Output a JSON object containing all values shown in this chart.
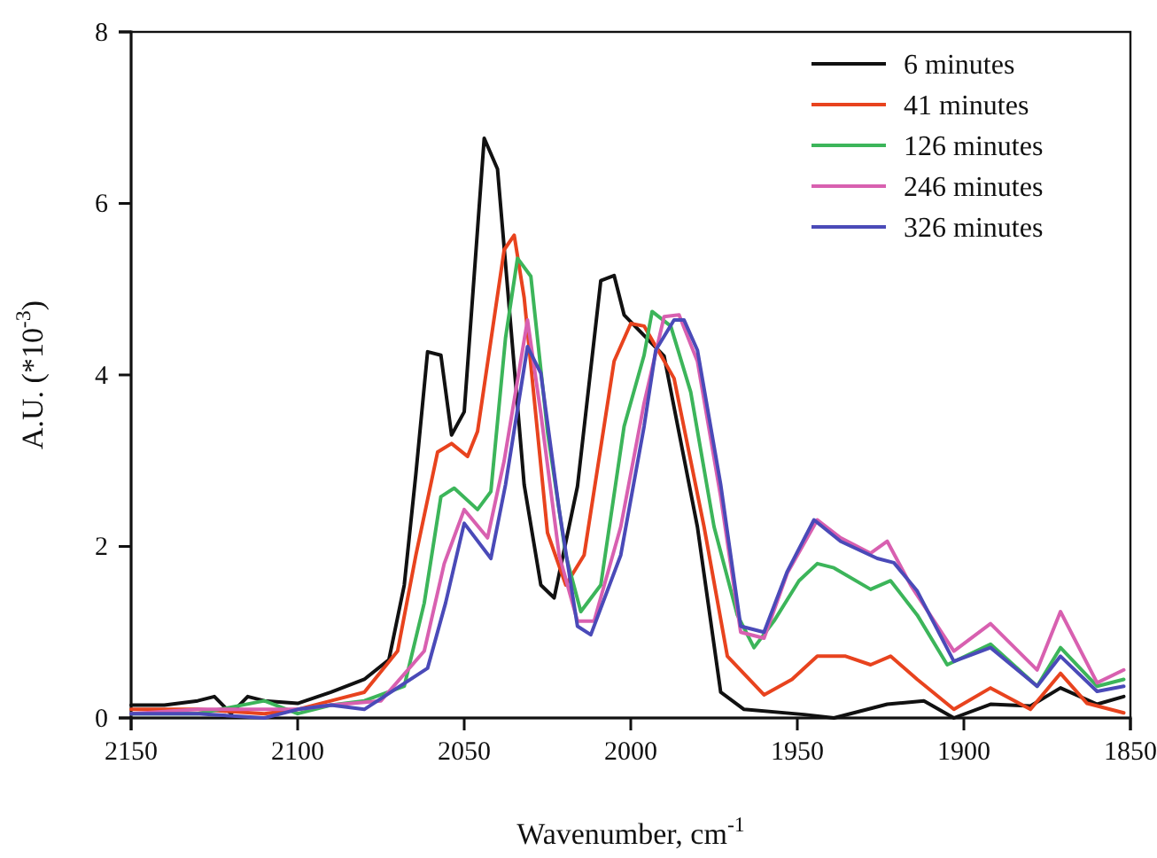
{
  "chart_data": {
    "type": "line",
    "xlabel": "Wavenumber, cm$^{-1}$",
    "ylabel": "A.U. (*10$^{-3}$)",
    "xlim": [
      2150,
      1850
    ],
    "xticks": [
      2150,
      2100,
      2050,
      2000,
      1950,
      1900,
      1850
    ],
    "ylim": [
      0,
      8
    ],
    "yticks": [
      0,
      2,
      4,
      6,
      8
    ],
    "grid": false,
    "legend": "top right",
    "marker": "none",
    "line_style": "solid",
    "series": [
      {
        "name": "6 minutes",
        "color": "#111111",
        "x": [
          2150,
          2140,
          2130,
          2125,
          2120,
          2115,
          2110,
          2100,
          2090,
          2080,
          2072.6,
          2068,
          2064.5,
          2061,
          2057,
          2053.8,
          2050,
          2044,
          2040,
          2032,
          2027,
          2023,
          2016,
          2009,
          2005,
          2002,
          1990,
          1980,
          1973,
          1966,
          1948,
          1939,
          1923,
          1912,
          1903,
          1892,
          1880,
          1871,
          1860,
          1852
        ],
        "values": [
          0.15,
          0.15,
          0.2,
          0.25,
          0.05,
          0.25,
          0.2,
          0.17,
          0.3,
          0.45,
          0.68,
          1.55,
          2.85,
          4.27,
          4.23,
          3.3,
          3.57,
          6.76,
          6.4,
          2.72,
          1.55,
          1.4,
          2.7,
          5.1,
          5.16,
          4.7,
          4.22,
          2.23,
          0.3,
          0.1,
          0.04,
          0,
          0.16,
          0.2,
          0,
          0.16,
          0.14,
          0.35,
          0.16,
          0.25
        ]
      },
      {
        "name": "41 minutes",
        "color": "#e8431e",
        "x": [
          2150,
          2130,
          2110,
          2100,
          2090,
          2080,
          2070,
          2064.5,
          2058,
          2053.8,
          2049,
          2046,
          2038,
          2035,
          2032,
          2025,
          2019.5,
          2014,
          2005,
          2000,
          1996,
          1987,
          1978,
          1971,
          1960,
          1951.6,
          1944,
          1935.5,
          1928,
          1922,
          1914,
          1903,
          1892,
          1880,
          1871,
          1863,
          1852
        ],
        "values": [
          0.1,
          0.1,
          0.05,
          0.1,
          0.2,
          0.3,
          0.78,
          1.9,
          3.1,
          3.2,
          3.05,
          3.34,
          5.46,
          5.63,
          4.9,
          2.16,
          1.55,
          1.9,
          4.16,
          4.6,
          4.57,
          3.96,
          2.23,
          0.72,
          0.27,
          0.45,
          0.72,
          0.72,
          0.62,
          0.72,
          0.45,
          0.1,
          0.35,
          0.1,
          0.52,
          0.17,
          0.06
        ]
      },
      {
        "name": "126 minutes",
        "color": "#3cb55a",
        "x": [
          2150,
          2130,
          2110,
          2100,
          2090,
          2080,
          2068,
          2062,
          2057,
          2053,
          2046,
          2042,
          2037.6,
          2034,
          2030,
          2025,
          2019.5,
          2015,
          2009,
          2002,
          1996,
          1993.6,
          1988,
          1982,
          1975,
          1968,
          1963,
          1957,
          1949.5,
          1944,
          1939,
          1928,
          1922,
          1914,
          1905,
          1892,
          1878,
          1871,
          1860,
          1852
        ],
        "values": [
          0.05,
          0.05,
          0.2,
          0.05,
          0.15,
          0.2,
          0.37,
          1.34,
          2.58,
          2.68,
          2.43,
          2.64,
          4.43,
          5.36,
          5.15,
          3.34,
          1.9,
          1.24,
          1.55,
          3.4,
          4.23,
          4.74,
          4.57,
          3.8,
          2.23,
          1.2,
          0.82,
          1.13,
          1.6,
          1.8,
          1.75,
          1.5,
          1.6,
          1.2,
          0.62,
          0.86,
          0.37,
          0.82,
          0.37,
          0.45
        ]
      },
      {
        "name": "246 minutes",
        "color": "#d860b0",
        "x": [
          2150,
          2130,
          2110,
          2100,
          2090,
          2075,
          2062,
          2056,
          2050,
          2043,
          2038,
          2031,
          2027,
          2021.5,
          2016,
          2011,
          2003,
          1996,
          1990,
          1985.5,
          1980,
          1973,
          1967,
          1960,
          1953,
          1944,
          1937,
          1928,
          1923,
          1916,
          1903,
          1892,
          1878,
          1871,
          1860,
          1852
        ],
        "values": [
          0.05,
          0.1,
          0.1,
          0.1,
          0.15,
          0.2,
          0.78,
          1.8,
          2.43,
          2.1,
          3.0,
          4.64,
          3.55,
          1.9,
          1.13,
          1.13,
          2.23,
          3.67,
          4.68,
          4.7,
          4.16,
          2.58,
          1.0,
          0.93,
          1.69,
          2.31,
          2.1,
          1.92,
          2.06,
          1.55,
          0.78,
          1.1,
          0.56,
          1.24,
          0.41,
          0.56
        ]
      },
      {
        "name": "326 minutes",
        "color": "#4a4ab8",
        "x": [
          2150,
          2130,
          2110,
          2100,
          2090,
          2080,
          2061,
          2055.6,
          2050,
          2042,
          2037.6,
          2031,
          2027,
          2021.5,
          2016,
          2012,
          2003,
          1996,
          1992.5,
          1987,
          1984,
          1980,
          1973,
          1967,
          1960,
          1953,
          1945,
          1937,
          1926,
          1921,
          1914,
          1903,
          1892,
          1878,
          1871,
          1860,
          1852
        ],
        "values": [
          0.05,
          0.05,
          0.0,
          0.1,
          0.15,
          0.1,
          0.58,
          1.34,
          2.27,
          1.86,
          2.72,
          4.33,
          4.02,
          2.43,
          1.07,
          0.97,
          1.9,
          3.4,
          4.29,
          4.64,
          4.64,
          4.29,
          2.72,
          1.07,
          1.0,
          1.71,
          2.31,
          2.06,
          1.86,
          1.81,
          1.48,
          0.66,
          0.82,
          0.37,
          0.72,
          0.31,
          0.37
        ]
      }
    ]
  }
}
